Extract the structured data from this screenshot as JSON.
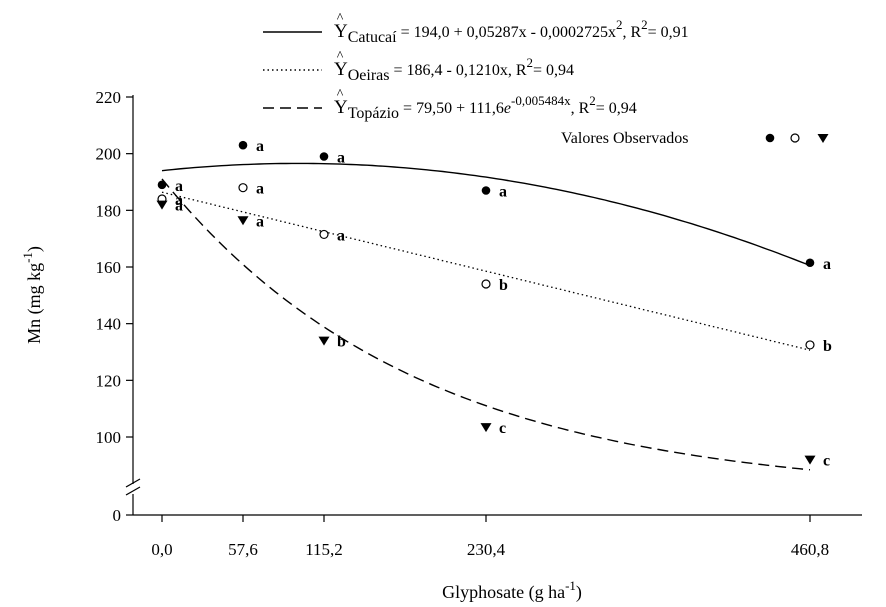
{
  "chart_data": {
    "type": "scatter",
    "xlabel": "Glyphosate",
    "xlabel_unit": "(g ha",
    "xlabel_unit_exp": "-1",
    "xlabel_unit_close": ")",
    "ylabel": "Mn",
    "ylabel_unit": "(mg kg",
    "ylabel_unit_exp": "-1",
    "ylabel_unit_close": ")",
    "x_ticks": [
      0.0,
      57.6,
      115.2,
      230.4,
      460.8
    ],
    "x_tick_labels": [
      "0,0",
      "57,6",
      "115,2",
      "230,4",
      "460,8"
    ],
    "y_ticks": [
      0,
      100,
      120,
      140,
      160,
      180,
      200,
      220
    ],
    "y_tick_labels": [
      "0",
      "100",
      "120",
      "140",
      "160",
      "180",
      "200",
      "220"
    ],
    "ylim": [
      0,
      220
    ],
    "y_axis_break": true,
    "grid": false,
    "legend_position": "top-right",
    "legend_observed_label": "Valores Observados",
    "series": [
      {
        "name": "Catucaí",
        "marker": "filled-circle",
        "line_style": "solid",
        "equation": {
          "hat": "^",
          "lhs": "Y",
          "sub": "Catucaí",
          "rhs": " = 194,0 + 0,05287x - 0,0002725x",
          "exp": "2",
          "r2_label": ", R",
          "r2_exp": "2",
          "r2_value": "= 0,91"
        },
        "model": {
          "kind": "quadratic",
          "a": 194.0,
          "b": 0.05287,
          "c": -0.0002725
        },
        "points": [
          {
            "x": 0.0,
            "y": 189,
            "label": "a"
          },
          {
            "x": 57.6,
            "y": 203,
            "label": "a"
          },
          {
            "x": 115.2,
            "y": 199,
            "label": "a"
          },
          {
            "x": 230.4,
            "y": 187,
            "label": "a"
          },
          {
            "x": 460.8,
            "y": 161.5,
            "label": "a"
          }
        ]
      },
      {
        "name": "Oeiras",
        "marker": "open-circle",
        "line_style": "dotted",
        "equation": {
          "hat": "^",
          "lhs": "Y",
          "sub": "Oeiras",
          "rhs": " = 186,4 - 0,1210x",
          "exp": "",
          "r2_label": ", R",
          "r2_exp": "2",
          "r2_value": "= 0,94"
        },
        "model": {
          "kind": "linear",
          "a": 186.4,
          "b": -0.121
        },
        "points": [
          {
            "x": 0.0,
            "y": 184,
            "label": "a"
          },
          {
            "x": 57.6,
            "y": 188,
            "label": "a"
          },
          {
            "x": 115.2,
            "y": 171.5,
            "label": "a"
          },
          {
            "x": 230.4,
            "y": 154,
            "label": "b"
          },
          {
            "x": 460.8,
            "y": 132.5,
            "label": "b"
          }
        ]
      },
      {
        "name": "Topázio",
        "marker": "filled-triangle-down",
        "line_style": "dashed",
        "equation": {
          "hat": "^",
          "lhs": "Y",
          "sub": "Topázio",
          "rhs": " = 79,50 + 111,6",
          "exp_e": "e",
          "exp": "-0,005484x",
          "r2_label": ", R",
          "r2_exp": "2",
          "r2_value": "= 0,94"
        },
        "model": {
          "kind": "exponential",
          "a": 79.5,
          "b": 111.6,
          "k": -0.005484
        },
        "points": [
          {
            "x": 0.0,
            "y": 182,
            "label": "a"
          },
          {
            "x": 57.6,
            "y": 176.5,
            "label": "a"
          },
          {
            "x": 115.2,
            "y": 134,
            "label": "b"
          },
          {
            "x": 230.4,
            "y": 103.5,
            "label": "c"
          },
          {
            "x": 460.8,
            "y": 92,
            "label": "c"
          }
        ]
      }
    ]
  }
}
